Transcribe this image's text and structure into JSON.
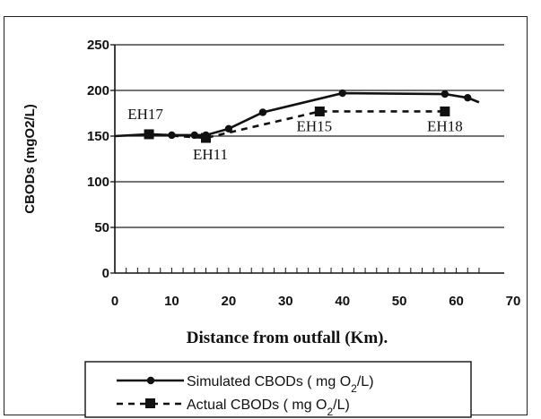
{
  "chart_data": {
    "type": "line",
    "xlabel": "Distance from outfall (Km).",
    "ylabel": "CBODs (mgO2/L)",
    "xlim": [
      0,
      70
    ],
    "ylim": [
      0,
      250
    ],
    "xticks": [
      0,
      10,
      20,
      30,
      40,
      50,
      60,
      70
    ],
    "yticks": [
      0,
      50,
      100,
      150,
      200,
      250
    ],
    "grid": "horizontal",
    "legend_position": "bottom",
    "series": [
      {
        "name": "Simulated CBODs ( mg O2/L)",
        "line": "solid",
        "marker": "circle",
        "color": "#111111",
        "points": [
          [
            0,
            150
          ],
          [
            6,
            152
          ],
          [
            10,
            151
          ],
          [
            14,
            151
          ],
          [
            16,
            151
          ],
          [
            20,
            158
          ],
          [
            26,
            176
          ],
          [
            40,
            197
          ],
          [
            58,
            196
          ],
          [
            62,
            192
          ],
          [
            64,
            187
          ]
        ],
        "marker_points": [
          [
            6,
            152
          ],
          [
            10,
            151
          ],
          [
            14,
            151
          ],
          [
            16,
            151
          ],
          [
            20,
            158
          ],
          [
            26,
            176
          ],
          [
            40,
            197
          ],
          [
            58,
            196
          ],
          [
            62,
            192
          ]
        ]
      },
      {
        "name": "Actual CBODs ( mg O2/L)",
        "line": "dashed",
        "marker": "square",
        "color": "#111111",
        "points": [
          [
            6,
            152
          ],
          [
            16,
            148
          ],
          [
            36,
            177
          ],
          [
            58,
            177
          ]
        ],
        "marker_points": [
          [
            6,
            152
          ],
          [
            16,
            148
          ],
          [
            36,
            177
          ],
          [
            58,
            177
          ]
        ]
      }
    ],
    "annotations": [
      {
        "text": "EH17",
        "x": 6,
        "y": 152
      },
      {
        "text": "EH11",
        "x": 16,
        "y": 148
      },
      {
        "text": "EH15",
        "x": 36,
        "y": 177
      },
      {
        "text": "EH18",
        "x": 58,
        "y": 177
      }
    ]
  }
}
